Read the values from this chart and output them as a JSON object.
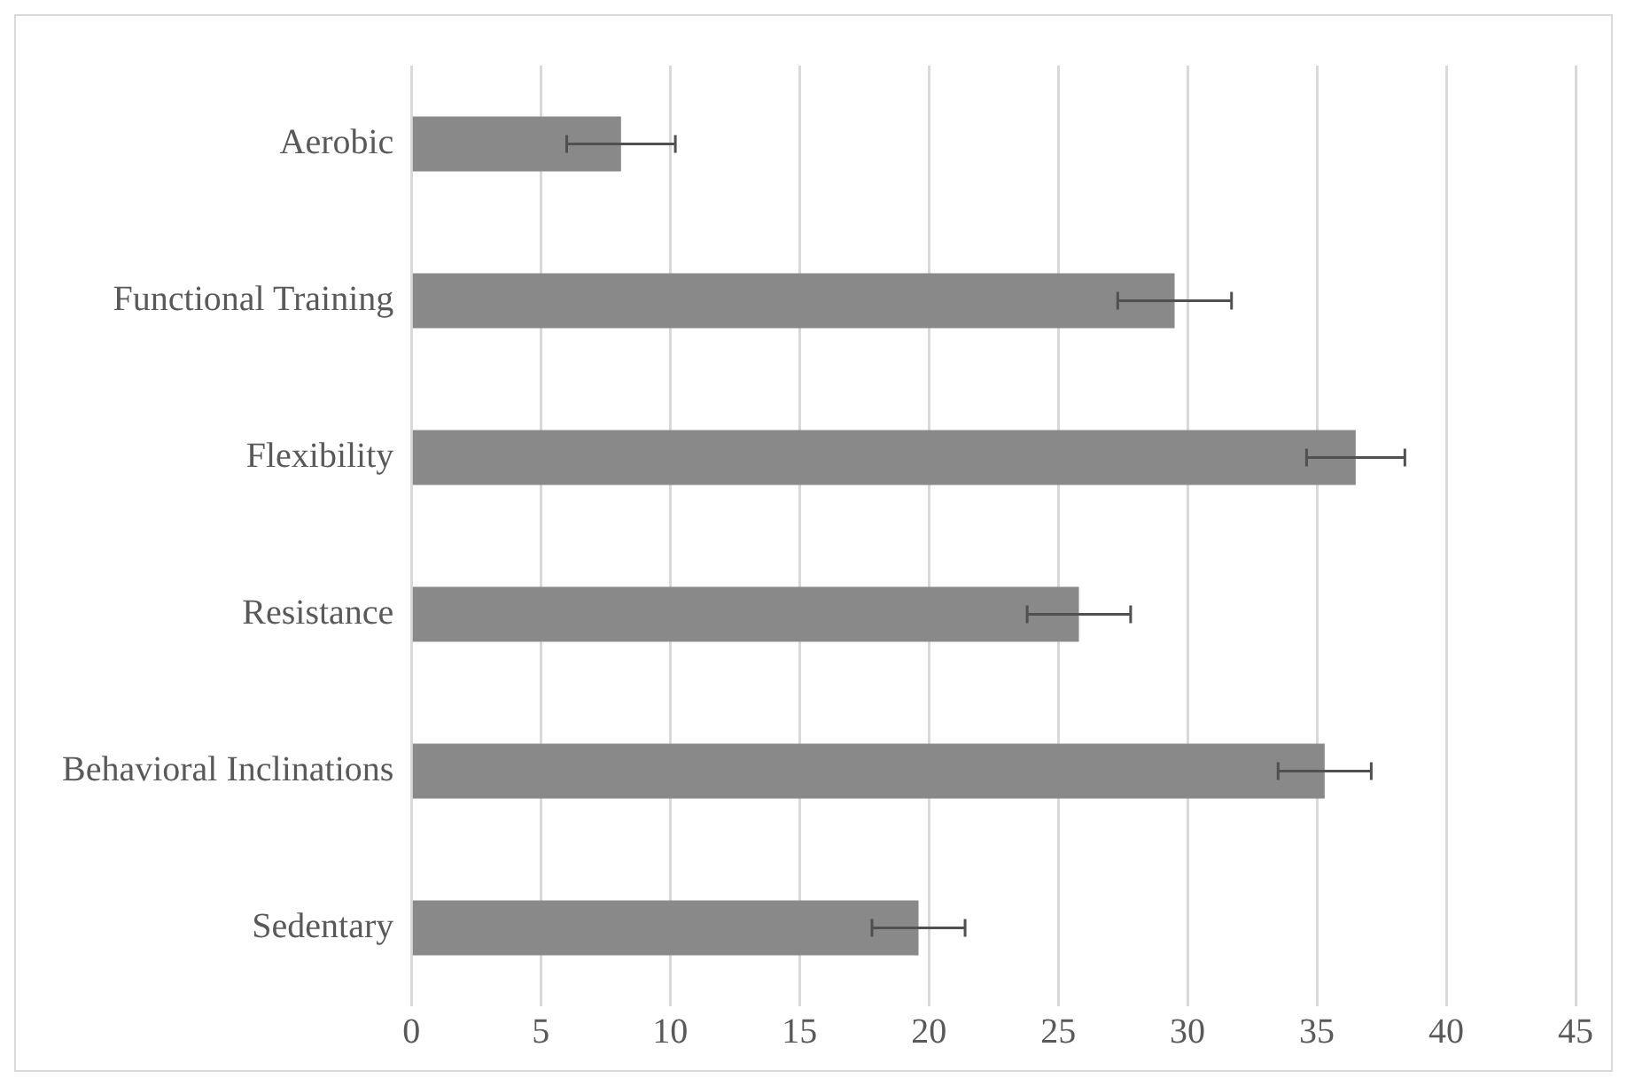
{
  "chart_data": {
    "type": "bar",
    "orientation": "horizontal",
    "categories": [
      "Aerobic",
      "Functional Training",
      "Flexibility",
      "Resistance",
      "Behavioral Inclinations",
      "Sedentary"
    ],
    "values": [
      8.1,
      29.5,
      36.5,
      25.8,
      35.3,
      19.6
    ],
    "errors": [
      2.1,
      2.2,
      1.9,
      2.0,
      1.8,
      1.8
    ],
    "color": "#898989",
    "xlim": [
      0,
      45
    ],
    "xticks": [
      0,
      5,
      10,
      15,
      20,
      25,
      30,
      35,
      40,
      45
    ],
    "grid": "x",
    "legend": false
  }
}
